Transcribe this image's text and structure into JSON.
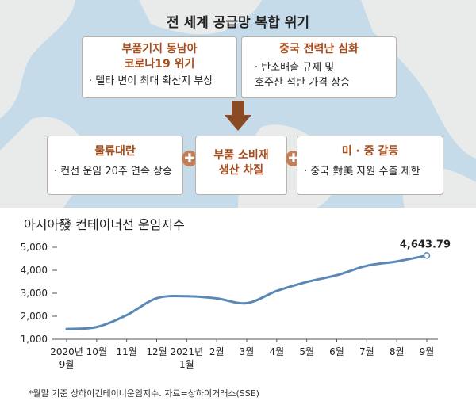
{
  "header": {
    "title": "전 세계 공급망 복합 위기"
  },
  "causes": [
    {
      "title": "부품기지 동남아\n코로나19 위기",
      "detail": "· 델타 변이 최대 확산지 부상"
    },
    {
      "title": "중국 전력난 심화",
      "detail": "· 탄소배출 규제 및\n호주산 석탄 가격 상승"
    }
  ],
  "effects": [
    {
      "title": "물류대란",
      "detail": "· 컨선 운임 20주 연속 상승"
    },
    {
      "title": "부품 소비재\n생산 차질",
      "detail": ""
    },
    {
      "title": "미 · 중 갈등",
      "detail": "· 중국 對美 자원 수출 제한"
    }
  ],
  "plus_symbol": "✚",
  "colors": {
    "accent": "#a64d1c",
    "arrow": "#8a4a24",
    "line": "#5a88b6",
    "map_water": "#c6dbe9",
    "map_land": "#e9ebea"
  },
  "chart_title": "아시아發 컨테이너선 운임지수",
  "footnote": "*월말 기준 상하이컨테이너운임지수. 자료=상하이거래소(SSE)",
  "chart_data": {
    "type": "line",
    "categories": [
      "2020년\n9월",
      "10월",
      "11월",
      "12월",
      "2021년\n1월",
      "2월",
      "3월",
      "4월",
      "5월",
      "6월",
      "7월",
      "8월",
      "9월"
    ],
    "values": [
      1443,
      1530,
      2049,
      2783,
      2870,
      2776,
      2570,
      3100,
      3490,
      3785,
      4196,
      4385,
      4643.79
    ],
    "annotation": {
      "index": 12,
      "label": "4,643.79"
    },
    "ylim": [
      1000,
      5000
    ],
    "yticks": [
      1000,
      2000,
      3000,
      4000,
      5000
    ],
    "ytick_labels": [
      "1,000",
      "2,000",
      "3,000",
      "4,000",
      "5,000"
    ],
    "grid": false
  }
}
